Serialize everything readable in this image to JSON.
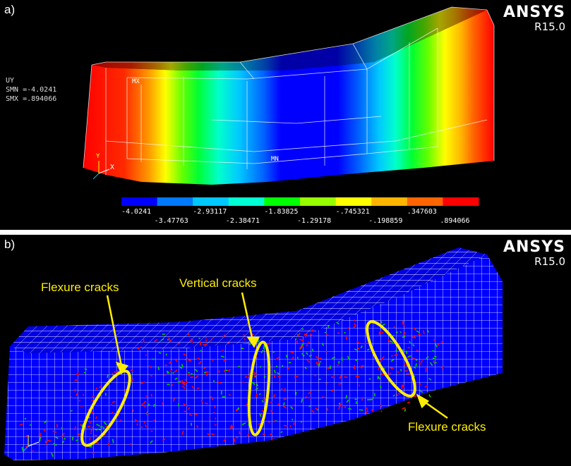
{
  "panel_a": {
    "label": "a)",
    "brand": "ANSYS",
    "version": "R15.0",
    "result_name": "UY",
    "smn_label": "SMN =-4.0241",
    "smx_label": "SMX =.894066",
    "mx_marker": "MX",
    "mn_marker": "MN",
    "axis_x": "X",
    "axis_y": "Y",
    "legend": {
      "colors": [
        "#0000ff",
        "#0078ff",
        "#00c8ff",
        "#00ffd2",
        "#00ff00",
        "#96ff00",
        "#ffff00",
        "#ffb400",
        "#ff6400",
        "#ff0000"
      ],
      "top_labels": [
        "-4.0241",
        "-2.93117",
        "-1.83825",
        "-.745321",
        ".347603"
      ],
      "bottom_labels": [
        "-3.47763",
        "-2.38471",
        "-1.29178",
        "-.198859",
        ".894066"
      ]
    }
  },
  "panel_b": {
    "label": "b)",
    "brand": "ANSYS",
    "version": "R15.0",
    "annotations": [
      {
        "id": "flex-left",
        "text": "Flexure cracks"
      },
      {
        "id": "vertical",
        "text": "Vertical cracks"
      },
      {
        "id": "flex-right",
        "text": "Flexure cracks"
      }
    ]
  },
  "colors": {
    "mesh_blue": "#0000ff",
    "crack_red": "#ff0000",
    "crack_green": "#00cc00",
    "annotation_yellow": "#ffee00"
  }
}
